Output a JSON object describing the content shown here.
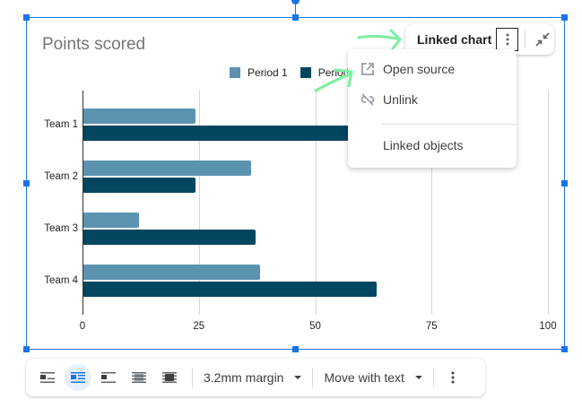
{
  "chart": {
    "title": "Points scored",
    "legend": [
      {
        "label": "Period 1",
        "color": "#5b93b0"
      },
      {
        "label": "Period 2",
        "color": "#03465f"
      }
    ]
  },
  "chart_data": {
    "type": "bar",
    "orientation": "horizontal",
    "title": "Points scored",
    "categories": [
      "Team 1",
      "Team 2",
      "Team 3",
      "Team 4"
    ],
    "series": [
      {
        "name": "Period 1",
        "color": "#5b93b0",
        "values": [
          24,
          36,
          12,
          38
        ]
      },
      {
        "name": "Period 2",
        "color": "#03465f",
        "values": [
          57,
          24,
          37,
          63
        ]
      }
    ],
    "xticks": [
      "0",
      "25",
      "50",
      "75",
      "100"
    ],
    "xlim": [
      0,
      100
    ],
    "grid": true,
    "legend_position": "top",
    "xlabel": "",
    "ylabel": "",
    "note": "Team 1 Period 2 bar partially hidden behind menu; value is at least ~57"
  },
  "chip": {
    "label": "Linked chart",
    "more_icon": "vertical-dots-icon",
    "collapse_icon": "collapse-icon"
  },
  "menu": {
    "items": [
      {
        "label": "Open source",
        "icon": "open-in-new-icon"
      },
      {
        "label": "Unlink",
        "icon": "link-off-icon"
      },
      {
        "label": "Linked objects",
        "icon": ""
      }
    ]
  },
  "toolbar": {
    "wrap_buttons": [
      {
        "name": "inline",
        "active": false
      },
      {
        "name": "wrap-text",
        "active": true
      },
      {
        "name": "break-text",
        "active": false
      },
      {
        "name": "behind-text",
        "active": false
      },
      {
        "name": "in-front-of-text",
        "active": false
      }
    ],
    "margin_label": "3.2mm margin",
    "position_label": "Move with text"
  },
  "colors": {
    "selection": "#1a73e8",
    "annotation": "#7af0a0"
  }
}
